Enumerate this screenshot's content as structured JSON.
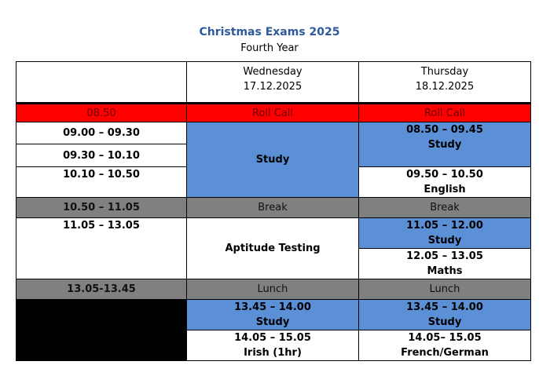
{
  "header": {
    "title": "Christmas Exams 2025",
    "subtitle": "Fourth Year"
  },
  "table": {
    "days": [
      {
        "day": "Wednesday",
        "date": "17.12.2025"
      },
      {
        "day": "Thursday",
        "date": "18.12.2025"
      }
    ],
    "times": [
      "08.50",
      "09.00 – 09.30",
      "09.30 – 10.10",
      "10.10 – 10.50",
      "10.50 – 11.05",
      "11.05 – 13.05",
      "13.05-13.45"
    ],
    "wednesday": [
      {
        "label": "Roll Call"
      },
      {
        "label": "Study"
      },
      {
        "label": "Break"
      },
      {
        "label": "Aptitude Testing"
      },
      {
        "label": "Lunch"
      },
      {
        "time": "13.45 – 14.00",
        "label": "Study"
      },
      {
        "time": "14.05 – 15.05",
        "label": "Irish (1hr)"
      }
    ],
    "thursday": [
      {
        "label": "Roll Call"
      },
      {
        "time": "08.50 – 09.45",
        "label": "Study"
      },
      {
        "time": "09.50 – 10.50",
        "label": "English"
      },
      {
        "label": "Break"
      },
      {
        "time": "11.05 – 12.00",
        "label": "Study"
      },
      {
        "time": "12.05 – 13.05",
        "label": "Maths"
      },
      {
        "label": "Lunch"
      },
      {
        "time": "13.45 – 14.00",
        "label": "Study"
      },
      {
        "time": "14.05– 15.05",
        "label": "French/German"
      }
    ]
  }
}
